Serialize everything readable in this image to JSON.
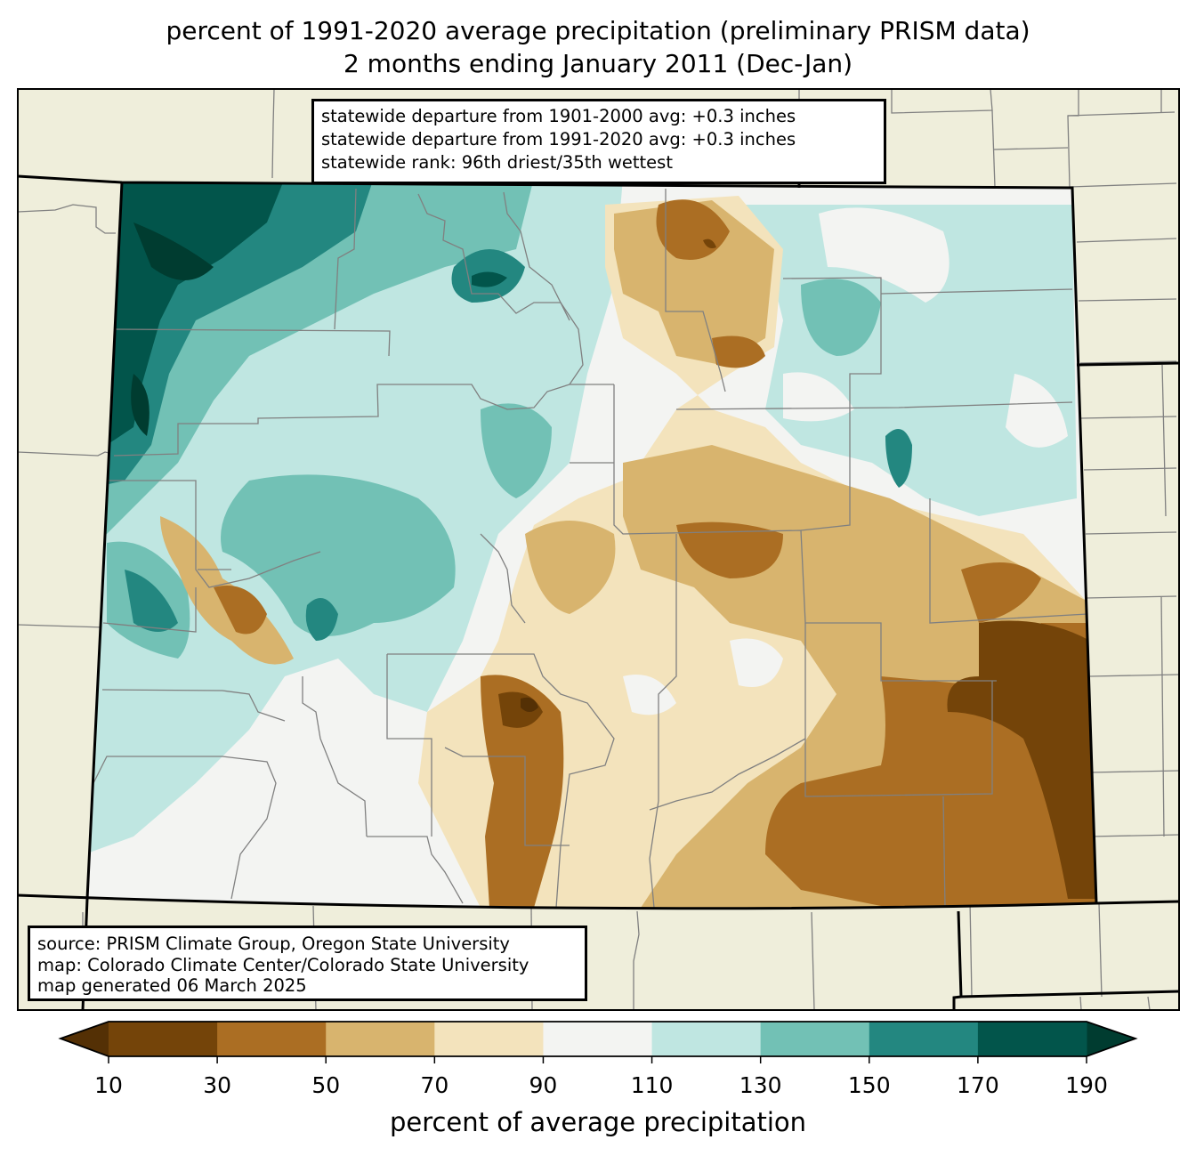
{
  "title": {
    "line1": "percent of 1991-2020 average precipitation (preliminary PRISM data)",
    "line2": "2 months ending January 2011 (Dec-Jan)"
  },
  "stats_box": {
    "line1": "statewide departure from 1901-2000 avg: +0.3 inches",
    "line2": "statewide departure from 1991-2020 avg: +0.3 inches",
    "line3": "statewide rank: 96th driest/35th wettest"
  },
  "credits_box": {
    "line1": "source: PRISM Climate Group, Oregon State University",
    "line2": "map: Colorado Climate Center/Colorado State University",
    "line3": "map generated 06 March 2025"
  },
  "colors": {
    "background_land": "#efeedb",
    "state_border": "#000000",
    "county_border": "#808080"
  },
  "colorbar": {
    "label": "percent of average precipitation",
    "ticks": [
      "10",
      "30",
      "50",
      "70",
      "90",
      "110",
      "130",
      "150",
      "170",
      "190"
    ],
    "under_color": "#543005",
    "over_color": "#003c30",
    "bins": [
      {
        "from": 10,
        "to": 30,
        "color": "#744409"
      },
      {
        "from": 30,
        "to": 50,
        "color": "#ab6e23"
      },
      {
        "from": 50,
        "to": 70,
        "color": "#d8b46e"
      },
      {
        "from": 70,
        "to": 90,
        "color": "#f3e3bc"
      },
      {
        "from": 90,
        "to": 110,
        "color": "#f3f4f2"
      },
      {
        "from": 110,
        "to": 130,
        "color": "#bfe6e1"
      },
      {
        "from": 130,
        "to": 150,
        "color": "#72c1b5"
      },
      {
        "from": 150,
        "to": 170,
        "color": "#238780"
      },
      {
        "from": 170,
        "to": 190,
        "color": "#02554b"
      }
    ]
  },
  "chart_data": {
    "type": "heatmap",
    "title": "percent of 1991-2020 average precipitation (preliminary PRISM data) — 2 months ending January 2011 (Dec-Jan)",
    "region": "Colorado",
    "value_label": "percent of average precipitation",
    "levels": [
      10,
      30,
      50,
      70,
      90,
      110,
      130,
      150,
      170,
      190
    ],
    "extend": "both",
    "regions": [
      {
        "area": "northwest corner",
        "value": 180
      },
      {
        "area": "northwest",
        "value": 160
      },
      {
        "area": "north-central mountains",
        "value": 140
      },
      {
        "area": "north-central plains",
        "value": 70
      },
      {
        "area": "northeast",
        "value": 115
      },
      {
        "area": "central west",
        "value": 120
      },
      {
        "area": "central mountains",
        "value": 130
      },
      {
        "area": "west-central valley",
        "value": 45
      },
      {
        "area": "central front range",
        "value": 60
      },
      {
        "area": "east-central",
        "value": 55
      },
      {
        "area": "southeast",
        "value": 35
      },
      {
        "area": "far southeast",
        "value": 20
      },
      {
        "area": "san luis valley",
        "value": 35
      },
      {
        "area": "south-central",
        "value": 75
      },
      {
        "area": "southwest",
        "value": 115
      }
    ]
  }
}
